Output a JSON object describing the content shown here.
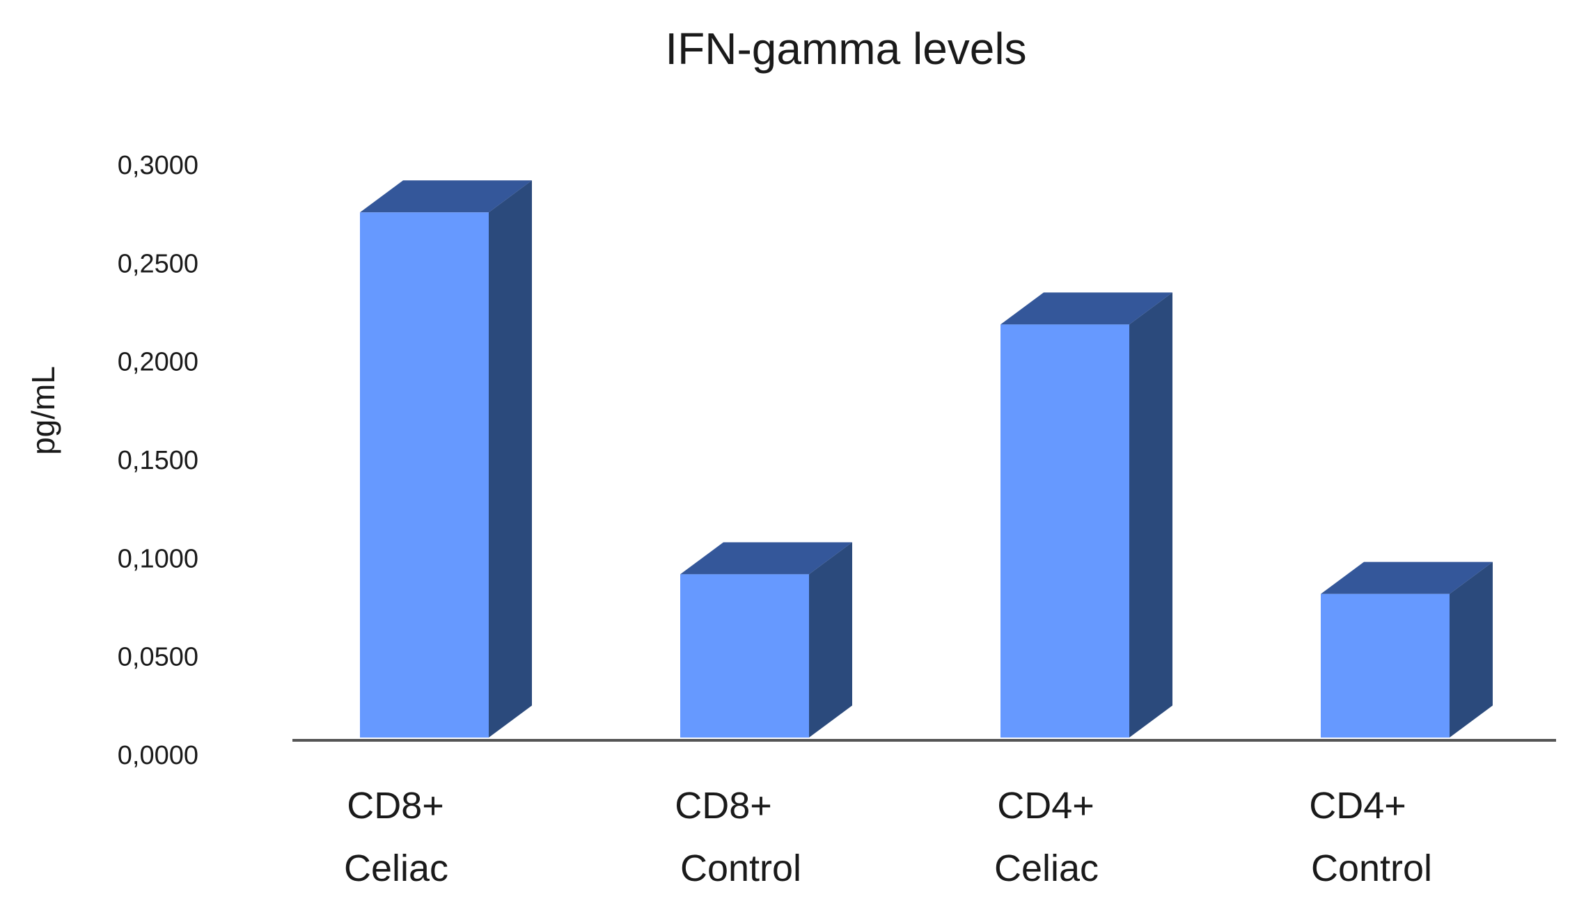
{
  "chart_data": {
    "type": "bar",
    "title": "IFN-gamma levels",
    "xlabel": "",
    "ylabel": "pg/mL",
    "ylim": [
      0,
      0.3
    ],
    "yticks": [
      "0,0000",
      "0,0500",
      "0,1000",
      "0,1500",
      "0,2000",
      "0,2500",
      "0,3000"
    ],
    "ytick_values": [
      0,
      0.05,
      0.1,
      0.15,
      0.2,
      0.25,
      0.3
    ],
    "categories": [
      [
        "CD8+",
        "Celiac"
      ],
      [
        "CD8+",
        "Control"
      ],
      [
        "CD4+",
        "Celiac"
      ],
      [
        "CD4+",
        "Control"
      ]
    ],
    "values": [
      0.267,
      0.083,
      0.21,
      0.073
    ],
    "grid": false,
    "legend": "none",
    "colors": {
      "front": "#6699ff",
      "top": "#34579a",
      "side": "#2b4a7c",
      "axis": "#555555"
    }
  }
}
